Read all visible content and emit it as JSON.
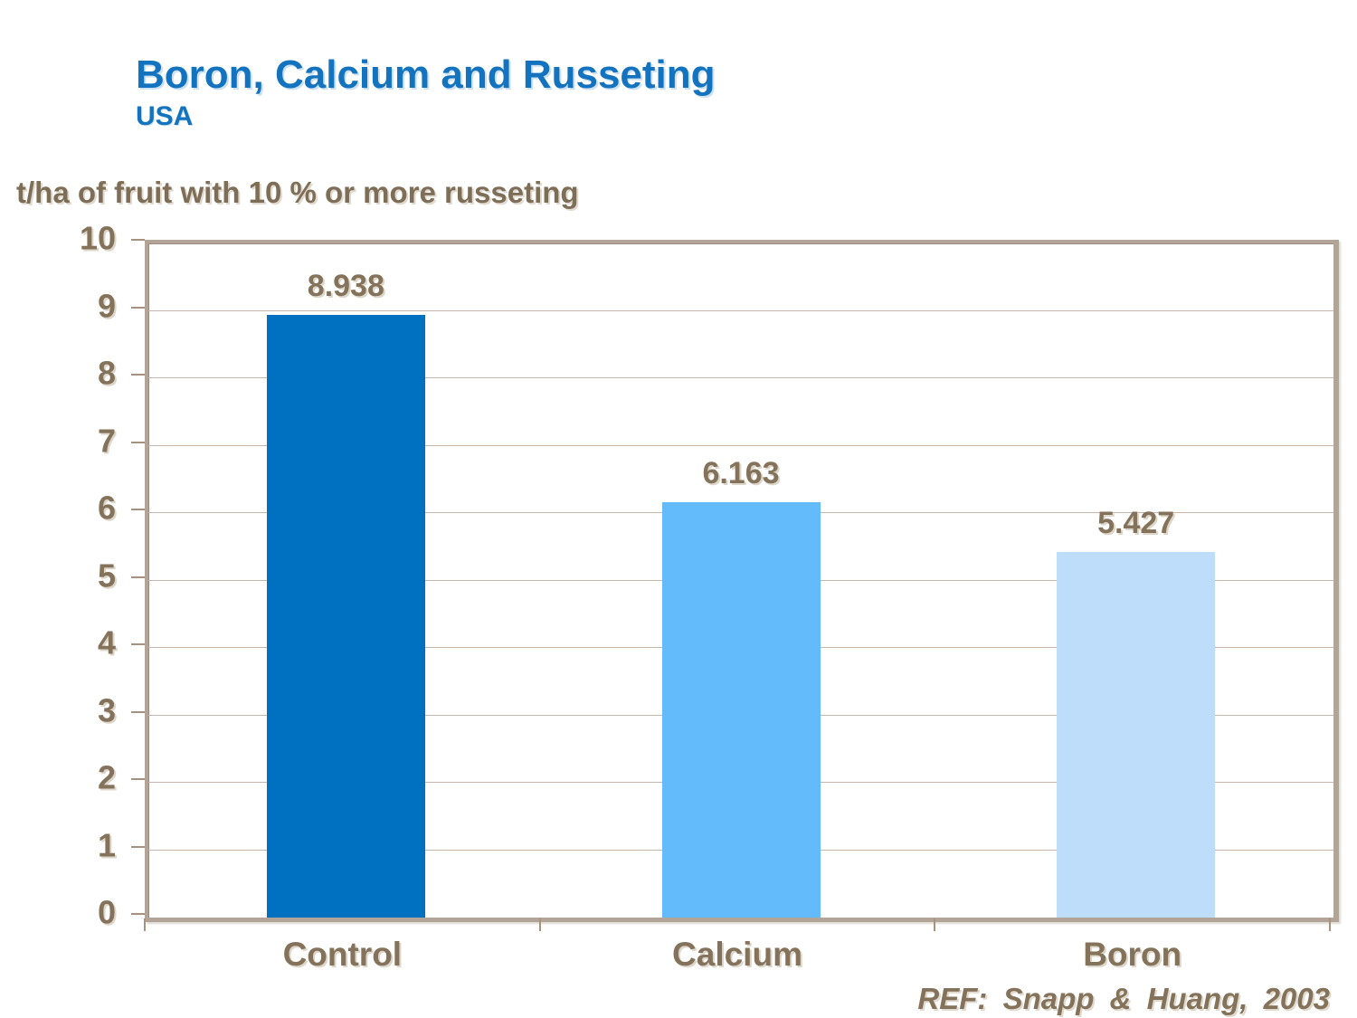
{
  "header": {
    "title": "Boron, Calcium and Russeting",
    "subtitle": "USA"
  },
  "footer": {
    "reference": "REF: Snapp & Huang, 2003"
  },
  "colors": {
    "title_blue": "#1373BE",
    "text_brown": "#84735A",
    "plot_border_tan": "#B2A496",
    "gridline_tan": "#C7B6A9",
    "bar_control": "#0070C0",
    "bar_calcium": "#63BBFB",
    "bar_boron": "#BDDDFB"
  },
  "chart_data": {
    "type": "bar",
    "title": "t/ha of fruit with 10 % or more russeting",
    "categories": [
      "Control",
      "Calcium",
      "Boron"
    ],
    "values": [
      8.938,
      6.163,
      5.427
    ],
    "value_labels": [
      "8.938",
      "6.163",
      "5.427"
    ],
    "bar_colors": [
      "#0070C0",
      "#63BBFB",
      "#BDDDFB"
    ],
    "xlabel": "",
    "ylabel": "t/ha of fruit with 10 % or more russeting",
    "ylim": [
      0,
      10
    ],
    "yticks": [
      0,
      1,
      2,
      3,
      4,
      5,
      6,
      7,
      8,
      9,
      10
    ],
    "grid": true,
    "legend_position": "none"
  }
}
